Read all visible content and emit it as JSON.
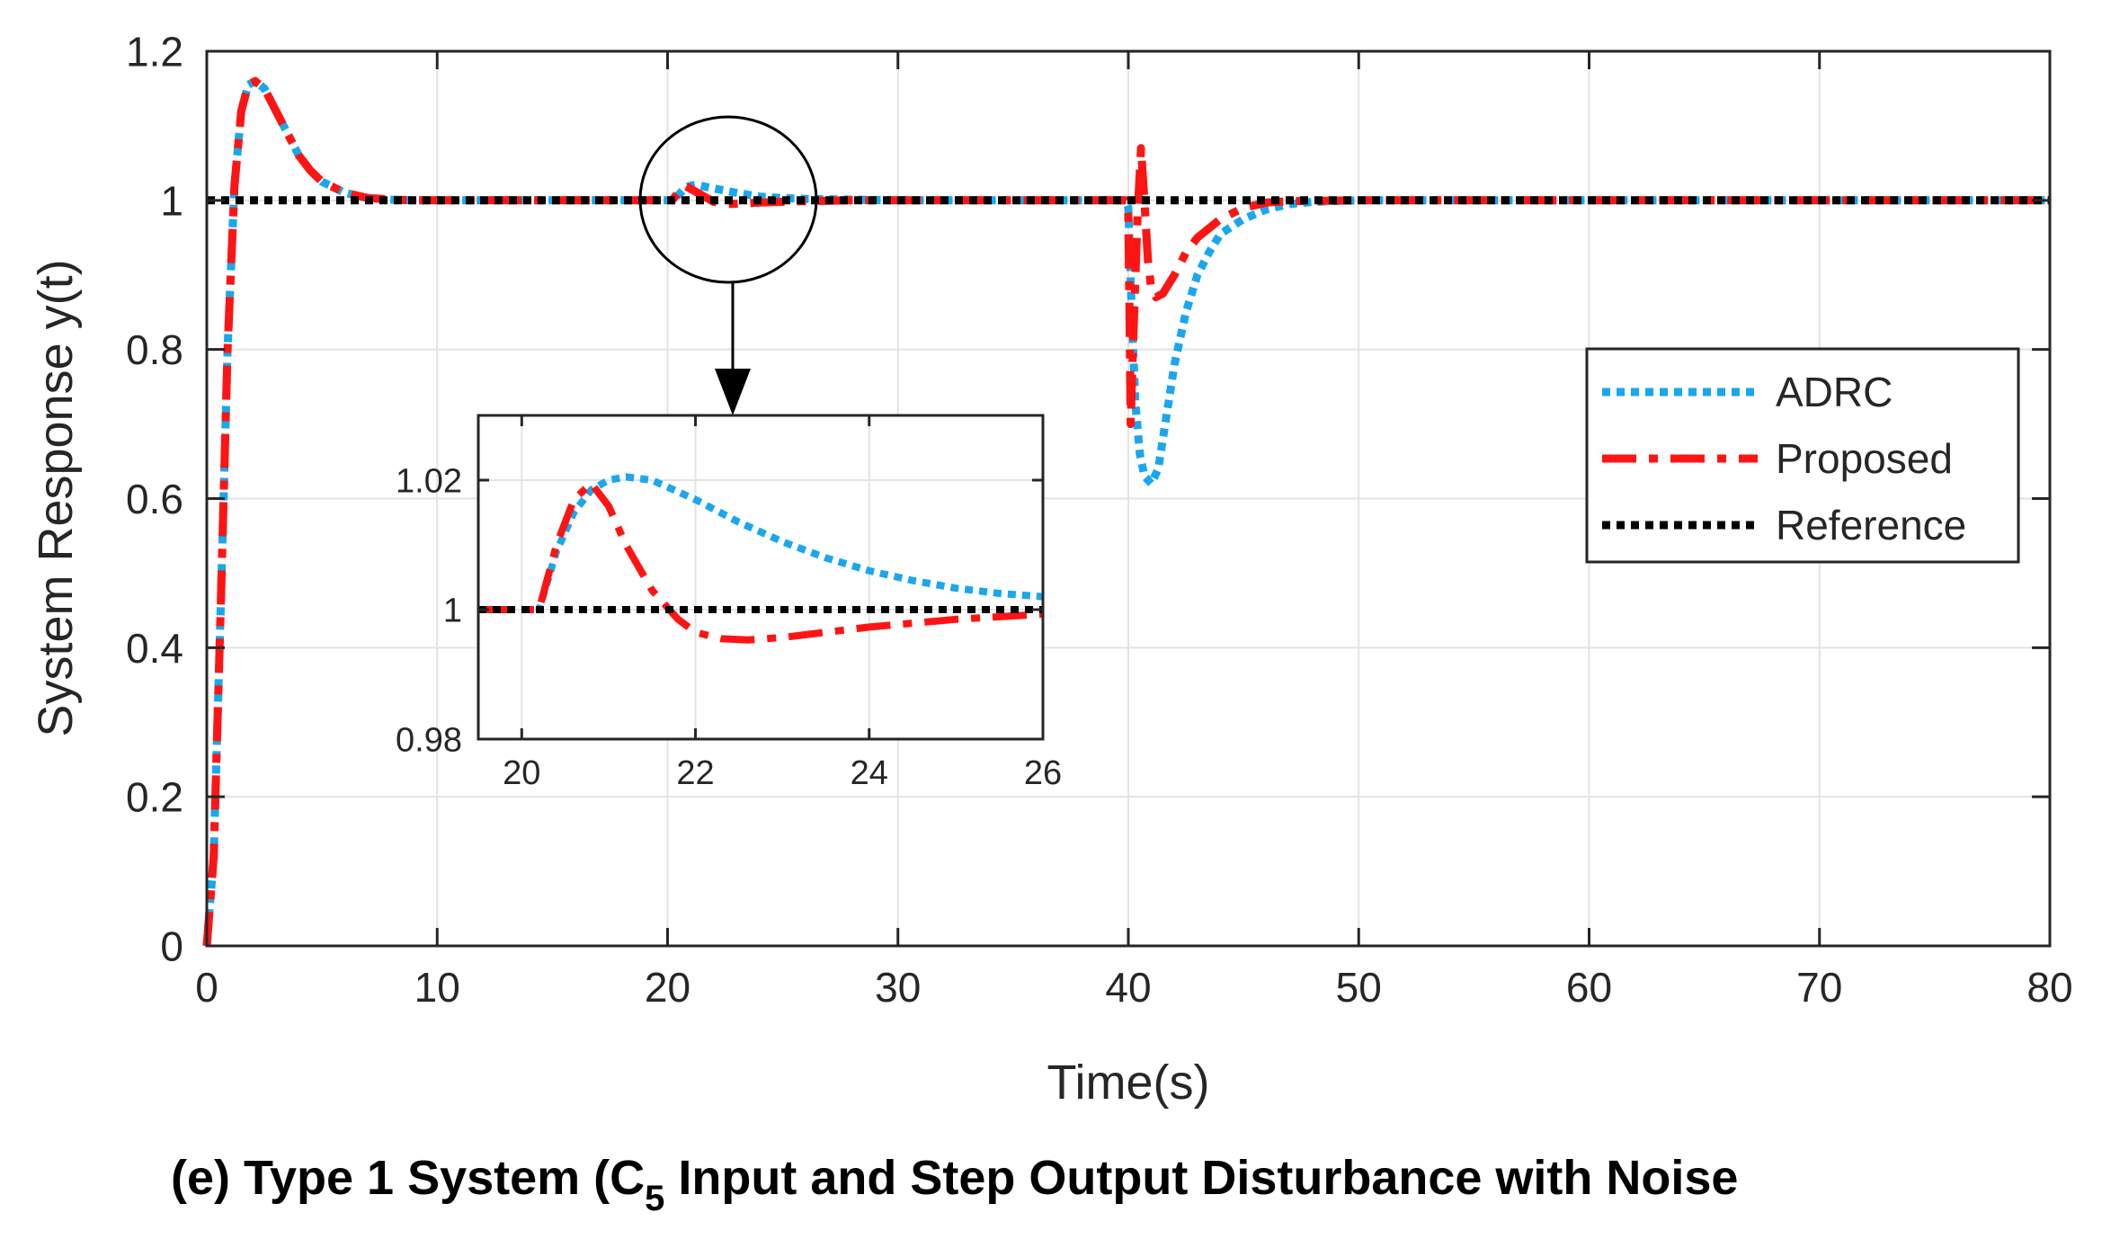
{
  "caption": {
    "prefix": "(e) Type 1 System (C",
    "subscript": "5",
    "suffix": " Input and Step Output Disturbance with Noise"
  },
  "chart_data": [
    {
      "id": "main",
      "type": "line",
      "xlabel": "Time(s)",
      "ylabel": "System Response y(t)",
      "xlim": [
        0,
        80
      ],
      "ylim": [
        0,
        1.2
      ],
      "xticks": [
        0,
        10,
        20,
        30,
        40,
        50,
        60,
        70,
        80
      ],
      "yticks": [
        0,
        0.2,
        0.4,
        0.6,
        0.8,
        1,
        1.2
      ],
      "grid": true,
      "legend": {
        "placement": "right-middle",
        "entries": [
          "ADRC",
          "Proposed",
          "Reference"
        ]
      },
      "series": [
        {
          "name": "ADRC",
          "color": "#1aa7ec",
          "style": "dotted",
          "x": [
            0,
            0.3,
            0.6,
            0.9,
            1.2,
            1.5,
            1.8,
            2.1,
            2.5,
            3,
            3.5,
            4,
            4.5,
            5,
            6,
            7,
            8,
            9,
            10,
            12,
            15,
            18,
            20,
            20.2,
            20.5,
            20.8,
            21.2,
            22,
            23,
            24,
            25,
            26,
            28,
            30,
            35,
            39.9,
            40,
            40.15,
            40.3,
            40.5,
            40.7,
            41,
            41.3,
            41.6,
            42,
            42.5,
            43,
            43.5,
            44,
            45,
            46,
            47,
            48,
            50,
            60,
            70,
            80
          ],
          "y": [
            0,
            0.12,
            0.45,
            0.8,
            1.02,
            1.12,
            1.155,
            1.16,
            1.15,
            1.12,
            1.09,
            1.06,
            1.04,
            1.025,
            1.01,
            1.003,
            1.001,
            1.0,
            1.0,
            1.0,
            1.0,
            1.0,
            1.0,
            1.0,
            1.008,
            1.018,
            1.021,
            1.016,
            1.01,
            1.005,
            1.003,
            1.002,
            1.001,
            1.0,
            1.0,
            1.0,
            0.99,
            0.85,
            0.73,
            0.66,
            0.63,
            0.62,
            0.64,
            0.7,
            0.78,
            0.85,
            0.9,
            0.93,
            0.955,
            0.975,
            0.988,
            0.995,
            0.998,
            1.0,
            1.0,
            1.0,
            1.0
          ]
        },
        {
          "name": "Proposed",
          "color": "#ff1414",
          "style": "dashdot",
          "x": [
            0,
            0.3,
            0.6,
            0.9,
            1.2,
            1.5,
            1.8,
            2.1,
            2.5,
            3,
            3.5,
            4,
            4.5,
            5,
            6,
            7,
            8,
            9,
            10,
            12,
            15,
            18,
            20,
            20.2,
            20.5,
            20.8,
            21.2,
            22,
            22.5,
            23,
            24,
            25,
            26,
            28,
            30,
            35,
            39.9,
            40,
            40.05,
            40.1,
            40.2,
            40.4,
            40.55,
            40.7,
            40.85,
            41,
            41.2,
            41.5,
            42,
            42.5,
            43,
            44,
            45,
            46,
            47,
            50,
            60,
            70,
            80
          ],
          "y": [
            0,
            0.12,
            0.45,
            0.8,
            1.02,
            1.12,
            1.155,
            1.16,
            1.15,
            1.12,
            1.09,
            1.06,
            1.04,
            1.025,
            1.01,
            1.003,
            1.001,
            1.0,
            1.0,
            1.0,
            1.0,
            1.0,
            1.0,
            1.0,
            1.012,
            1.019,
            1.012,
            0.998,
            0.995,
            0.9955,
            0.997,
            0.998,
            0.999,
            1.0,
            1.0,
            1.0,
            1.0,
            0.98,
            0.85,
            0.7,
            0.8,
            0.98,
            1.07,
            1.0,
            0.92,
            0.88,
            0.87,
            0.875,
            0.9,
            0.93,
            0.95,
            0.975,
            0.99,
            0.997,
            0.999,
            1.0,
            1.0,
            1.0,
            1.0
          ]
        },
        {
          "name": "Reference",
          "color": "#000000",
          "style": "dotted",
          "x": [
            0,
            80
          ],
          "y": [
            1,
            1
          ]
        }
      ]
    },
    {
      "id": "inset",
      "type": "line",
      "xlim": [
        19.5,
        26
      ],
      "ylim": [
        0.98,
        1.03
      ],
      "xticks": [
        20,
        22,
        24,
        26
      ],
      "yticks": [
        0.98,
        1,
        1.02
      ],
      "grid": true,
      "series": [
        {
          "name": "ADRC",
          "color": "#1aa7ec",
          "style": "dotted",
          "x": [
            19.5,
            20,
            20.2,
            20.4,
            20.6,
            20.8,
            21,
            21.2,
            21.5,
            22,
            22.5,
            23,
            23.5,
            24,
            24.5,
            25,
            25.5,
            26
          ],
          "y": [
            1.0,
            1.0,
            1.0,
            1.009,
            1.015,
            1.0185,
            1.02,
            1.0205,
            1.02,
            1.017,
            1.0135,
            1.0105,
            1.008,
            1.006,
            1.0045,
            1.0033,
            1.0025,
            1.002
          ]
        },
        {
          "name": "Proposed",
          "color": "#ff1414",
          "style": "dashdot",
          "x": [
            19.5,
            20,
            20.2,
            20.4,
            20.6,
            20.8,
            21,
            21.2,
            21.5,
            21.8,
            22,
            22.3,
            22.6,
            23,
            23.5,
            24,
            25,
            26
          ],
          "y": [
            1.0,
            1.0,
            1.0,
            1.01,
            1.017,
            1.0195,
            1.016,
            1.01,
            1.003,
            0.9985,
            0.9965,
            0.9955,
            0.9953,
            0.9957,
            0.9965,
            0.9973,
            0.9985,
            0.9993
          ]
        },
        {
          "name": "Reference",
          "color": "#000000",
          "style": "dotted",
          "x": [
            19.5,
            26
          ],
          "y": [
            1,
            1
          ]
        }
      ]
    }
  ]
}
